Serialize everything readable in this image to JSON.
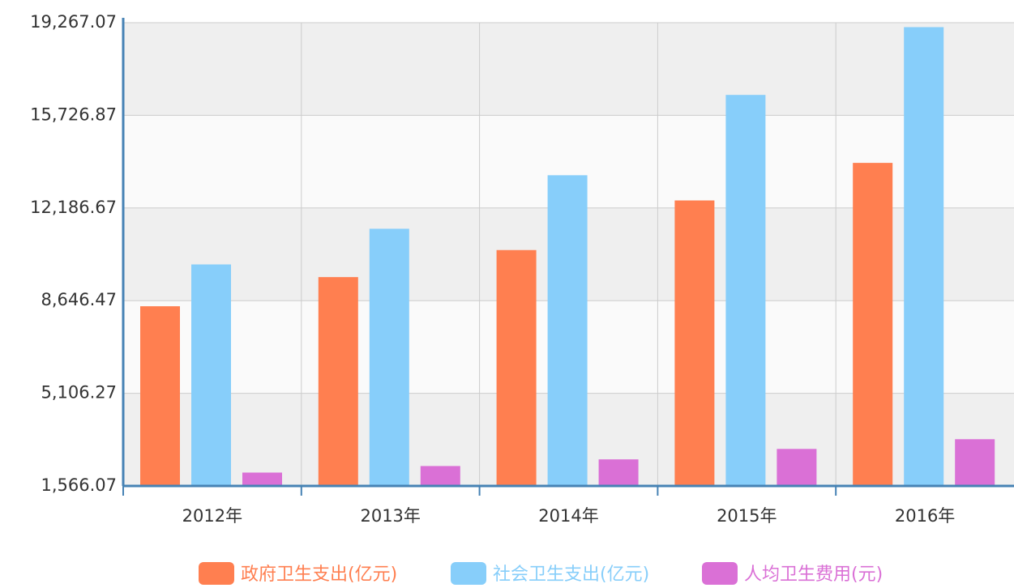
{
  "chart_data": {
    "type": "bar",
    "categories": [
      "2012年",
      "2013年",
      "2014年",
      "2015年",
      "2016年"
    ],
    "series": [
      {
        "name": "政府卫生支出(亿元)",
        "color": "#ff7f50",
        "values": [
          8432,
          9546,
          10579,
          12475,
          13910
        ]
      },
      {
        "name": "社会卫生支出(亿元)",
        "color": "#87cefa",
        "values": [
          10030,
          11393,
          13438,
          16507,
          19097
        ]
      },
      {
        "name": "人均卫生费用(元)",
        "color": "#da70d6",
        "values": [
          2077,
          2327,
          2582,
          2981,
          3352
        ]
      }
    ],
    "ylim": [
      1566.07,
      19267.07
    ],
    "yticks": [
      {
        "value": 1566.07,
        "label": "1,566.07"
      },
      {
        "value": 5106.27,
        "label": "5,106.27"
      },
      {
        "value": 8646.47,
        "label": "8,646.47"
      },
      {
        "value": 12186.67,
        "label": "12,186.67"
      },
      {
        "value": 15726.87,
        "label": "15,726.87"
      },
      {
        "value": 19267.07,
        "label": "19,267.07"
      }
    ],
    "grid": true,
    "legend": "bottom"
  }
}
